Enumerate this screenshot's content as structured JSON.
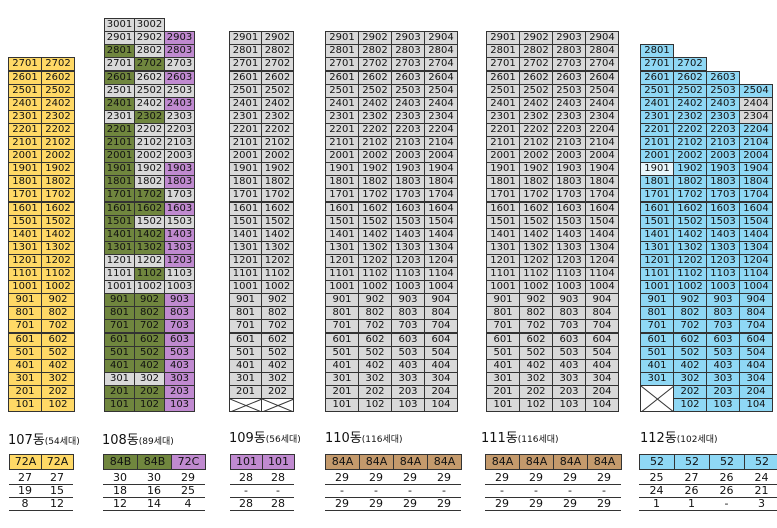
{
  "colors": {
    "gray": "#d9d9d9",
    "yellow": "#ffd966",
    "green": "#70863e",
    "purple": "#c08ad0",
    "sky": "#8fd8f5",
    "tan": "#c49a6c",
    "light": "#e8f6fb"
  },
  "buildings": [
    {
      "id": "107",
      "title": "107동",
      "units": "(54세대)",
      "lines": 2,
      "floors": [
        1,
        27
      ],
      "suffixes": [
        "1",
        "2"
      ],
      "colorTypes": [
        "yellow",
        "yellow"
      ],
      "summary": {
        "types": [
          "72A",
          "72A"
        ],
        "typeColors": [
          "yellow",
          "yellow"
        ],
        "rows": [
          [
            "27",
            "27"
          ],
          [
            "19",
            "15"
          ],
          [
            "8",
            "12"
          ]
        ]
      }
    },
    {
      "id": "108",
      "title": "108동",
      "units": "(89세대)",
      "lines": 3,
      "floors": [
        1,
        30
      ],
      "suffixes": [
        "1",
        "2",
        "3"
      ],
      "colorTypes": [
        "green",
        "green",
        "purple"
      ],
      "overrides": {
        "302": "gray",
        "301": "gray",
        "1201": "gray",
        "1202": "gray",
        "1502": "gray",
        "1503": "gray",
        "1703": "gray",
        "1802": "gray",
        "1902": "gray",
        "2001": "green",
        "2002": "gray",
        "2003": "gray",
        "2102": "gray",
        "2103": "gray",
        "2202": "gray",
        "2203": "gray",
        "2301": "gray",
        "2303": "gray",
        "2402": "gray",
        "2501": "gray",
        "2502": "gray",
        "2503": "gray",
        "2602": "gray",
        "2701": "gray",
        "2703": "gray",
        "2802": "gray",
        "2901": "gray",
        "2902": "gray",
        "3001": "gray",
        "3002": "gray",
        "1102": "green",
        "1103": "gray",
        "1101": "gray",
        "1003": "gray",
        "1002": "gray",
        "1001": "gray"
      },
      "missing": [
        "3003"
      ],
      "summary": {
        "types": [
          "84B",
          "84B",
          "72C"
        ],
        "typeColors": [
          "green",
          "green",
          "purple"
        ],
        "rows": [
          [
            "30",
            "30",
            "29"
          ],
          [
            "18",
            "16",
            "25"
          ],
          [
            "12",
            "14",
            "4"
          ]
        ]
      }
    },
    {
      "id": "109",
      "title": "109동",
      "units": "(56세대)",
      "lines": 2,
      "floors": [
        1,
        29
      ],
      "suffixes": [
        "1",
        "2"
      ],
      "colorTypes": [
        "gray",
        "gray"
      ],
      "empty": [
        "101",
        "102"
      ],
      "summary": {
        "types": [
          "101",
          "101"
        ],
        "typeColors": [
          "purple",
          "purple"
        ],
        "rows": [
          [
            "28",
            "28"
          ],
          [
            "-",
            "-"
          ],
          [
            "28",
            "28"
          ]
        ]
      }
    },
    {
      "id": "110",
      "title": "110동",
      "units": "(116세대)",
      "lines": 4,
      "floors": [
        1,
        29
      ],
      "suffixes": [
        "1",
        "2",
        "3",
        "4"
      ],
      "colorTypes": [
        "gray",
        "gray",
        "gray",
        "gray"
      ],
      "summary": {
        "types": [
          "84A",
          "84A",
          "84A",
          "84A"
        ],
        "typeColors": [
          "tan",
          "tan",
          "tan",
          "tan"
        ],
        "rows": [
          [
            "29",
            "29",
            "29",
            "29"
          ],
          [
            "-",
            "-",
            "-",
            "-"
          ],
          [
            "29",
            "29",
            "29",
            "29"
          ]
        ]
      }
    },
    {
      "id": "111",
      "title": "111동",
      "units": "(116세대)",
      "lines": 4,
      "floors": [
        1,
        29
      ],
      "suffixes": [
        "1",
        "2",
        "3",
        "4"
      ],
      "colorTypes": [
        "gray",
        "gray",
        "gray",
        "gray"
      ],
      "summary": {
        "types": [
          "84A",
          "84A",
          "84A",
          "84A"
        ],
        "typeColors": [
          "tan",
          "tan",
          "tan",
          "tan"
        ],
        "rows": [
          [
            "29",
            "29",
            "29",
            "29"
          ],
          [
            "-",
            "-",
            "-",
            "-"
          ],
          [
            "29",
            "29",
            "29",
            "29"
          ]
        ]
      }
    },
    {
      "id": "112",
      "title": "112동",
      "units": "(102세대)",
      "lines": 4,
      "floors": [
        1,
        28
      ],
      "suffixes": [
        "1",
        "2",
        "3",
        "4"
      ],
      "colorTypes": [
        "sky",
        "sky",
        "sky",
        "sky"
      ],
      "overrides": {
        "1901": "light",
        "2304": "gray",
        "2404": "gray"
      },
      "missing": [
        "2802",
        "2803",
        "2804",
        "2703",
        "2704",
        "2604",
        "101",
        "201"
      ],
      "empty": [
        "101-201"
      ],
      "summary": {
        "types": [
          "52",
          "52",
          "52",
          "52"
        ],
        "typeColors": [
          "sky",
          "sky",
          "sky",
          "sky"
        ],
        "rows": [
          [
            "25",
            "27",
            "26",
            "24"
          ],
          [
            "24",
            "26",
            "26",
            "21"
          ],
          [
            "1",
            "1",
            "-",
            "3"
          ]
        ]
      }
    }
  ]
}
